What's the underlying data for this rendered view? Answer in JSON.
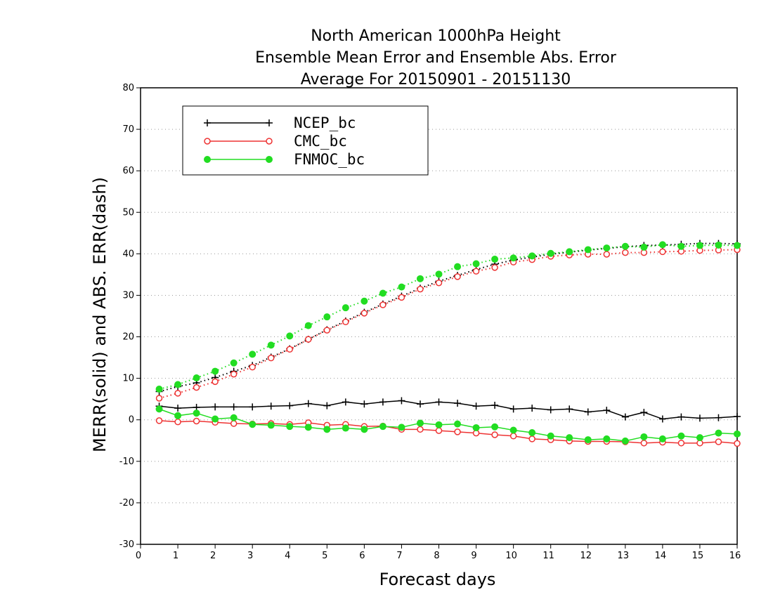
{
  "chart_data": {
    "type": "line",
    "title": [
      "North American 1000hPa Height",
      "Ensemble Mean Error and Ensemble Abs. Error",
      "Average For 20150901 - 20151130"
    ],
    "xlabel": "Forecast days",
    "ylabel": "MERR(solid) and ABS. ERR(dash)",
    "xlim": [
      0,
      16
    ],
    "ylim": [
      -30,
      80
    ],
    "xticks": [
      0,
      1,
      2,
      3,
      4,
      5,
      6,
      7,
      8,
      9,
      10,
      11,
      12,
      13,
      14,
      15,
      16
    ],
    "yticks": [
      -30,
      -20,
      -10,
      0,
      10,
      20,
      30,
      40,
      50,
      60,
      70,
      80
    ],
    "grid": "horizontal dotted",
    "legend_position": "top-left",
    "x": [
      0.5,
      1,
      1.5,
      2,
      2.5,
      3,
      3.5,
      4,
      4.5,
      5,
      5.5,
      6,
      6.5,
      7,
      7.5,
      8,
      8.5,
      9,
      9.5,
      10,
      10.5,
      11,
      11.5,
      12,
      12.5,
      13,
      13.5,
      14,
      14.5,
      15,
      15.5,
      16
    ],
    "series": [
      {
        "name": "NCEP_bc",
        "color": "#000000",
        "marker": "plus",
        "merr": [
          3.3,
          2.8,
          3.0,
          3.1,
          3.1,
          3.1,
          3.3,
          3.4,
          3.9,
          3.4,
          4.3,
          3.8,
          4.3,
          4.6,
          3.8,
          4.3,
          4.0,
          3.3,
          3.5,
          2.6,
          2.8,
          2.4,
          2.6,
          1.9,
          2.3,
          0.7,
          1.8,
          0.2,
          0.7,
          0.4,
          0.5,
          0.8
        ],
        "abs_err": [
          6.8,
          8.0,
          8.9,
          10.2,
          11.7,
          13.1,
          15.1,
          17.1,
          19.4,
          21.7,
          23.8,
          25.9,
          27.9,
          29.8,
          31.7,
          33.4,
          34.8,
          36.2,
          37.5,
          38.5,
          39.2,
          39.9,
          40.4,
          40.9,
          41.3,
          41.7,
          42.0,
          42.1,
          42.3,
          42.5,
          42.5,
          42.4
        ]
      },
      {
        "name": "CMC_bc",
        "color": "#ee3333",
        "marker": "open-circle",
        "merr": [
          -0.2,
          -0.5,
          -0.3,
          -0.6,
          -0.9,
          -1.0,
          -0.9,
          -1.1,
          -0.7,
          -1.3,
          -1.1,
          -1.6,
          -1.5,
          -2.3,
          -2.3,
          -2.6,
          -2.9,
          -3.2,
          -3.6,
          -3.9,
          -4.6,
          -4.8,
          -5.1,
          -5.2,
          -5.2,
          -5.3,
          -5.6,
          -5.4,
          -5.6,
          -5.6,
          -5.3,
          -5.7
        ],
        "abs_err": [
          5.2,
          6.4,
          7.8,
          9.2,
          11.0,
          12.7,
          14.9,
          17.0,
          19.4,
          21.6,
          23.6,
          25.7,
          27.7,
          29.5,
          31.5,
          33.0,
          34.5,
          35.8,
          36.7,
          38.0,
          38.6,
          39.4,
          39.7,
          39.9,
          39.9,
          40.3,
          40.3,
          40.5,
          40.6,
          40.8,
          40.9,
          41.0
        ]
      },
      {
        "name": "FNMOC_bc",
        "color": "#22dd22",
        "marker": "filled-circle",
        "merr": [
          2.6,
          1.0,
          1.6,
          0.2,
          0.5,
          -1.1,
          -1.3,
          -1.6,
          -1.8,
          -2.3,
          -2.0,
          -2.3,
          -1.6,
          -1.8,
          -0.8,
          -1.2,
          -1.0,
          -1.9,
          -1.7,
          -2.5,
          -3.1,
          -3.9,
          -4.3,
          -4.8,
          -4.6,
          -5.1,
          -4.1,
          -4.6,
          -3.9,
          -4.3,
          -3.2,
          -3.4
        ],
        "abs_err": [
          7.4,
          8.5,
          10.1,
          11.7,
          13.7,
          15.8,
          18.0,
          20.2,
          22.7,
          24.8,
          27.0,
          28.6,
          30.5,
          32.0,
          34.0,
          35.1,
          36.9,
          37.6,
          38.7,
          39.0,
          39.5,
          40.1,
          40.5,
          41.0,
          41.4,
          41.8,
          41.6,
          42.2,
          41.8,
          42.0,
          42.1,
          42.0
        ]
      }
    ]
  }
}
